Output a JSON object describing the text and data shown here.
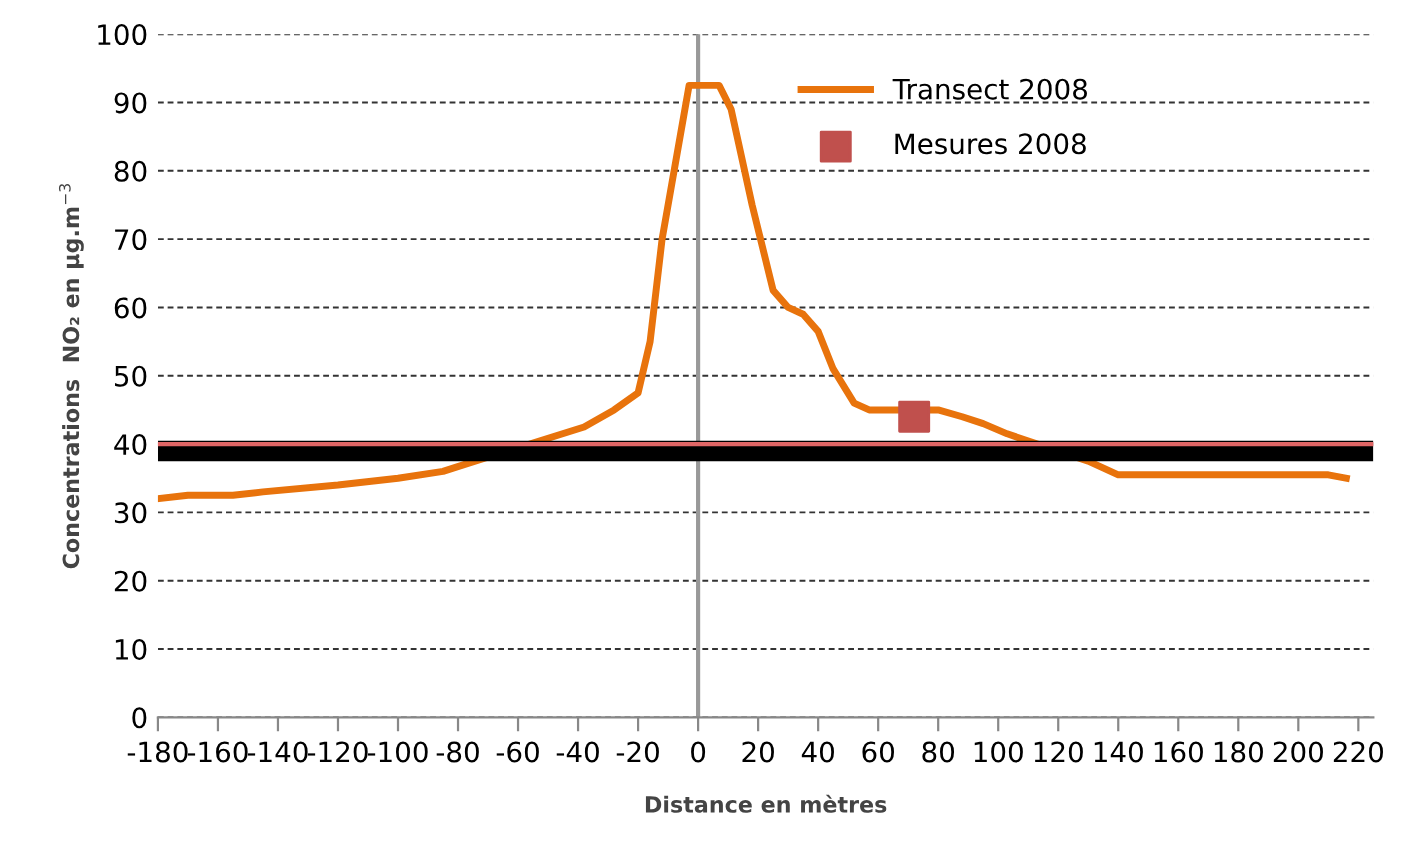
{
  "chart_data": {
    "type": "line",
    "xlabel": "Distance en mètres",
    "ylabel": "Concentrations  NO₂ en µg.m$^{−3}$",
    "xlim": [
      -180,
      225
    ],
    "xticks": [
      -180,
      -160,
      -140,
      -120,
      -100,
      -80,
      -60,
      -40,
      -20,
      0,
      20,
      40,
      60,
      80,
      100,
      120,
      140,
      160,
      180,
      200,
      220
    ],
    "ylim": [
      0,
      100
    ],
    "yticks": [
      0,
      10,
      20,
      30,
      40,
      50,
      60,
      70,
      80,
      90,
      100
    ],
    "grid": "y",
    "legend": "top right",
    "series": [
      {
        "name": "Transect 2008",
        "color": "#e8730c",
        "marker": "none",
        "line_style": "solid",
        "x": [
          -180,
          -170,
          -155,
          -145,
          -120,
          -100,
          -85,
          -78,
          -38,
          -28,
          -20,
          -16,
          -12,
          -6,
          -3,
          7,
          11,
          18,
          25,
          30,
          35,
          40,
          45,
          52,
          57,
          80,
          88,
          95,
          103,
          130,
          140,
          210,
          216
        ],
        "values": [
          32,
          32.5,
          32.5,
          33,
          34,
          35,
          36,
          37,
          42.5,
          45,
          47.5,
          55,
          70,
          85,
          92.5,
          92.5,
          89,
          75,
          62.5,
          60,
          59,
          56.5,
          51,
          46,
          45,
          45,
          44,
          43,
          41.5,
          37.5,
          35.5,
          35.5,
          35
        ]
      },
      {
        "name": "Mesures 2008",
        "type": "scatter",
        "color": "#c0504d",
        "marker": "square",
        "x": [
          72
        ],
        "values": [
          44
        ]
      }
    ],
    "bands": [
      {
        "axis": "y",
        "from": 37.5,
        "to": 40.5,
        "color": "#000000"
      }
    ],
    "ref_lines": [
      {
        "axis": "y",
        "value": 40,
        "color": "#e06666",
        "line_style": "solid"
      },
      {
        "axis": "x",
        "value": 0,
        "color": "#999999",
        "line_style": "solid"
      }
    ]
  }
}
